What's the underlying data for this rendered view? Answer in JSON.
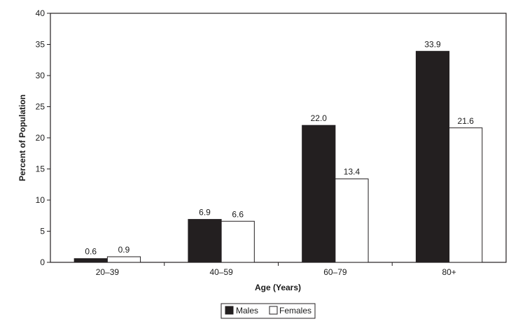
{
  "chart_data": {
    "type": "bar",
    "title": "",
    "xlabel": "Age (Years)",
    "ylabel": "Percent of Population",
    "categories": [
      "20–39",
      "40–59",
      "60–79",
      "80+"
    ],
    "series": [
      {
        "name": "Males",
        "values": [
          0.6,
          6.9,
          22.0,
          33.9
        ],
        "labels": [
          "0.6",
          "6.9",
          "22.0",
          "33.9"
        ],
        "color": "#231f20"
      },
      {
        "name": "Females",
        "values": [
          0.9,
          6.6,
          13.4,
          21.6
        ],
        "labels": [
          "0.9",
          "6.6",
          "13.4",
          "21.6"
        ],
        "color": "#ffffff"
      }
    ],
    "ylim": [
      0,
      40
    ],
    "yticks": [
      "0",
      "5",
      "10",
      "15",
      "20",
      "25",
      "30",
      "35",
      "40"
    ],
    "grid": false,
    "legend_position": "bottom-center"
  }
}
